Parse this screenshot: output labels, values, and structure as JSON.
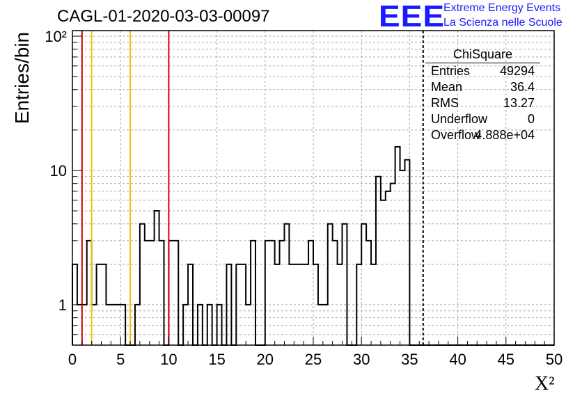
{
  "title": "CAGL-01-2020-03-03-00097",
  "logo": {
    "mark": "EEE",
    "line1": "Extreme Energy Events",
    "line2": "La Scienza nelle Scuole"
  },
  "chart_data": {
    "type": "bar",
    "histogram": true,
    "xlabel": "X²",
    "ylabel": "Entries/bin",
    "xlim": [
      0,
      50
    ],
    "ylim": [
      0.5,
      110
    ],
    "yscale": "log",
    "grid": true,
    "bin_width": 0.5,
    "x_ticks": [
      0,
      5,
      10,
      15,
      20,
      25,
      30,
      35,
      40,
      45,
      50
    ],
    "y_ticks": [
      {
        "value": 1,
        "label": "1"
      },
      {
        "value": 10,
        "label": "10"
      },
      {
        "value": 100,
        "label": "10²"
      }
    ],
    "x": [
      0.25,
      0.75,
      1.25,
      1.75,
      2.25,
      2.75,
      3.25,
      3.75,
      4.25,
      4.75,
      5.25,
      5.75,
      6.25,
      6.75,
      7.25,
      7.75,
      8.25,
      8.75,
      9.25,
      9.75,
      10.25,
      10.75,
      11.25,
      11.75,
      12.25,
      12.75,
      13.25,
      13.75,
      14.25,
      14.75,
      15.25,
      15.75,
      16.25,
      16.75,
      17.25,
      17.75,
      18.25,
      18.75,
      19.25,
      19.75,
      20.25,
      20.75,
      21.25,
      21.75,
      22.25,
      22.75,
      23.25,
      23.75,
      24.25,
      24.75,
      25.25,
      25.75,
      26.25,
      26.75,
      27.25,
      27.75,
      28.25,
      28.75,
      29.25,
      29.75,
      30.25,
      30.75,
      31.25,
      31.75,
      32.25,
      32.75,
      33.25,
      33.75,
      34.25,
      34.75,
      35.25,
      35.75,
      36.25,
      36.75,
      37.25,
      37.75,
      38.25,
      38.75,
      39.25,
      39.75,
      40.25,
      40.75,
      41.25,
      41.75,
      42.25,
      42.75,
      43.25,
      43.75,
      44.25,
      44.75,
      45.25,
      45.75,
      46.25,
      46.75,
      47.25,
      47.75,
      48.25,
      48.75,
      49.25,
      49.75
    ],
    "values": [
      2,
      1,
      1,
      3,
      1,
      2,
      2,
      1,
      1,
      1,
      1,
      0,
      0,
      1,
      4,
      3,
      3,
      5,
      3,
      0,
      3,
      3,
      0,
      1,
      2,
      0,
      1,
      0,
      1,
      0,
      1,
      0,
      2,
      0,
      2,
      2,
      1,
      3,
      0,
      0,
      3,
      3,
      2,
      3,
      4,
      2,
      2,
      2,
      2,
      3,
      2,
      1,
      1,
      4,
      3,
      2,
      4,
      0,
      0,
      2,
      4,
      3,
      2,
      9,
      6,
      7,
      8,
      15,
      10,
      12,
      0,
      0,
      0,
      0,
      0,
      0,
      0,
      0,
      0,
      0,
      0,
      0,
      0,
      0,
      0,
      0,
      0,
      0,
      0,
      0,
      0,
      0,
      0,
      0,
      0,
      0,
      0,
      0,
      0,
      0
    ],
    "vlines": [
      {
        "x": 1,
        "color": "#d40000"
      },
      {
        "x": 2,
        "color": "#f2c10f"
      },
      {
        "x": 6,
        "color": "#f2c10f"
      },
      {
        "x": 10,
        "color": "#d40000"
      },
      {
        "x": 36.4,
        "color": "#000000",
        "dashed": true
      }
    ],
    "line_color": "#000000"
  },
  "stats": {
    "name": "ChiSquare",
    "rows": [
      {
        "key": "Entries",
        "value": "49294"
      },
      {
        "key": "Mean",
        "value": "36.4"
      },
      {
        "key": "RMS",
        "value": "13.27"
      },
      {
        "key": "Underflow",
        "value": "0"
      },
      {
        "key": "Overflow",
        "value": "4.888e+04"
      }
    ]
  }
}
